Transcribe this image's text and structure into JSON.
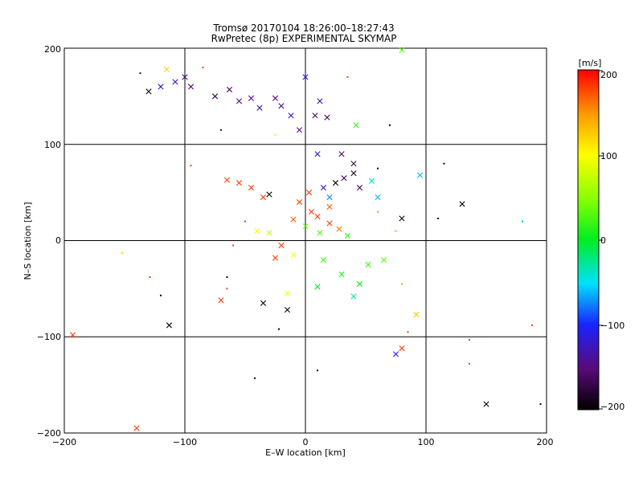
{
  "header": {
    "title": "Tromsø 20170104 18:26:00–18:27:43",
    "subtitle": "RwPretec (8p) EXPERIMENTAL SKYMAP"
  },
  "chart_data": {
    "type": "scatter",
    "title": "Tromsø 20170104 18:26:00–18:27:43",
    "subtitle": "RwPretec (8p) EXPERIMENTAL SKYMAP",
    "xlabel": "E–W location [km]",
    "ylabel": "N–S location [km]",
    "xlim": [
      -200,
      200
    ],
    "ylim": [
      -200,
      200
    ],
    "xticks": [
      "−200",
      "−100",
      "0",
      "100",
      "200"
    ],
    "yticks": [
      "−200",
      "−100",
      "0",
      "100",
      "200"
    ],
    "grid": true,
    "markers": "x = meteor echoes, dot = weaker echoes",
    "colorbar": {
      "label": "[m/s]",
      "range": [
        -200,
        200
      ],
      "ticks": [
        "200",
        "100",
        "0",
        "−100",
        "−200"
      ],
      "colormap": "black-purple-blue-cyan-green-yellow-red"
    },
    "points": [
      {
        "x": -137,
        "y": 174,
        "v": -180,
        "m": "dot"
      },
      {
        "x": -115,
        "y": 178,
        "v": 120,
        "m": "x"
      },
      {
        "x": -120,
        "y": 160,
        "v": -120,
        "m": "x"
      },
      {
        "x": -108,
        "y": 165,
        "v": -130,
        "m": "x"
      },
      {
        "x": -100,
        "y": 170,
        "v": -140,
        "m": "x"
      },
      {
        "x": -95,
        "y": 160,
        "v": -150,
        "m": "x"
      },
      {
        "x": -130,
        "y": 155,
        "v": -190,
        "m": "x"
      },
      {
        "x": -85,
        "y": 180,
        "v": 180,
        "m": "dot"
      },
      {
        "x": -75,
        "y": 150,
        "v": -170,
        "m": "x"
      },
      {
        "x": -63,
        "y": 157,
        "v": -160,
        "m": "x"
      },
      {
        "x": -55,
        "y": 145,
        "v": -150,
        "m": "x"
      },
      {
        "x": -45,
        "y": 148,
        "v": -140,
        "m": "x"
      },
      {
        "x": -38,
        "y": 138,
        "v": -130,
        "m": "x"
      },
      {
        "x": -25,
        "y": 148,
        "v": -150,
        "m": "x"
      },
      {
        "x": -20,
        "y": 140,
        "v": -140,
        "m": "x"
      },
      {
        "x": -12,
        "y": 130,
        "v": -120,
        "m": "x"
      },
      {
        "x": 0,
        "y": 170,
        "v": -110,
        "m": "x"
      },
      {
        "x": 12,
        "y": 145,
        "v": -130,
        "m": "x"
      },
      {
        "x": 8,
        "y": 130,
        "v": -160,
        "m": "x"
      },
      {
        "x": 18,
        "y": 128,
        "v": -170,
        "m": "x"
      },
      {
        "x": -5,
        "y": 115,
        "v": -150,
        "m": "x"
      },
      {
        "x": 35,
        "y": 170,
        "v": 180,
        "m": "dot"
      },
      {
        "x": 42,
        "y": 120,
        "v": 20,
        "m": "x"
      },
      {
        "x": 80,
        "y": 198,
        "v": 30,
        "m": "x"
      },
      {
        "x": 70,
        "y": 120,
        "v": -200,
        "m": "dot"
      },
      {
        "x": -70,
        "y": 115,
        "v": -180,
        "m": "dot"
      },
      {
        "x": -25,
        "y": 110,
        "v": 80,
        "m": "dot"
      },
      {
        "x": 10,
        "y": 90,
        "v": -120,
        "m": "x"
      },
      {
        "x": 30,
        "y": 90,
        "v": -150,
        "m": "x"
      },
      {
        "x": 40,
        "y": 80,
        "v": -170,
        "m": "x"
      },
      {
        "x": 60,
        "y": 75,
        "v": -200,
        "m": "dot"
      },
      {
        "x": 115,
        "y": 80,
        "v": -200,
        "m": "dot"
      },
      {
        "x": 95,
        "y": 68,
        "v": -60,
        "m": "x"
      },
      {
        "x": 130,
        "y": 38,
        "v": -200,
        "m": "x"
      },
      {
        "x": 80,
        "y": 23,
        "v": -190,
        "m": "x"
      },
      {
        "x": 110,
        "y": 23,
        "v": -190,
        "m": "dot"
      },
      {
        "x": 180,
        "y": 20,
        "v": -60,
        "m": "dot"
      },
      {
        "x": 150,
        "y": -170,
        "v": -200,
        "m": "x"
      },
      {
        "x": 195,
        "y": -170,
        "v": -200,
        "m": "dot"
      },
      {
        "x": -140,
        "y": -195,
        "v": 180,
        "m": "x"
      },
      {
        "x": -193,
        "y": -98,
        "v": 180,
        "m": "x"
      },
      {
        "x": -113,
        "y": -88,
        "v": -200,
        "m": "x"
      },
      {
        "x": -70,
        "y": -62,
        "v": 180,
        "m": "x"
      },
      {
        "x": -35,
        "y": -65,
        "v": -200,
        "m": "x"
      },
      {
        "x": -15,
        "y": -72,
        "v": -200,
        "m": "x"
      },
      {
        "x": -22,
        "y": -92,
        "v": -200,
        "m": "dot"
      },
      {
        "x": -42,
        "y": -143,
        "v": -200,
        "m": "dot"
      },
      {
        "x": 10,
        "y": -135,
        "v": -200,
        "m": "dot"
      },
      {
        "x": 92,
        "y": -77,
        "v": 130,
        "m": "x"
      },
      {
        "x": 80,
        "y": -112,
        "v": 180,
        "m": "x"
      },
      {
        "x": 75,
        "y": -118,
        "v": -110,
        "m": "x"
      },
      {
        "x": 85,
        "y": -95,
        "v": 180,
        "m": "dot"
      },
      {
        "x": 136,
        "y": -103,
        "v": 180,
        "m": "dot"
      },
      {
        "x": 136,
        "y": -128,
        "v": 180,
        "m": "dot"
      },
      {
        "x": 188,
        "y": -88,
        "v": 180,
        "m": "dot"
      },
      {
        "x": 80,
        "y": -45,
        "v": 30,
        "m": "dot"
      },
      {
        "x": -129,
        "y": -38,
        "v": 180,
        "m": "dot"
      },
      {
        "x": -152,
        "y": -13,
        "v": 120,
        "m": "dot"
      },
      {
        "x": -120,
        "y": -57,
        "v": -200,
        "m": "dot"
      },
      {
        "x": -65,
        "y": -38,
        "v": -200,
        "m": "dot"
      },
      {
        "x": -95,
        "y": 78,
        "v": 180,
        "m": "dot"
      },
      {
        "x": -65,
        "y": 63,
        "v": 180,
        "m": "x"
      },
      {
        "x": -55,
        "y": 60,
        "v": 180,
        "m": "x"
      },
      {
        "x": -45,
        "y": 55,
        "v": 180,
        "m": "x"
      },
      {
        "x": -35,
        "y": 45,
        "v": 180,
        "m": "x"
      },
      {
        "x": -30,
        "y": 48,
        "v": -200,
        "m": "x"
      },
      {
        "x": 25,
        "y": 60,
        "v": -200,
        "m": "x"
      },
      {
        "x": 32,
        "y": 65,
        "v": -170,
        "m": "x"
      },
      {
        "x": 40,
        "y": 70,
        "v": -190,
        "m": "x"
      },
      {
        "x": 45,
        "y": 55,
        "v": -160,
        "m": "x"
      },
      {
        "x": 55,
        "y": 62,
        "v": -40,
        "m": "x"
      },
      {
        "x": 60,
        "y": 45,
        "v": -60,
        "m": "x"
      },
      {
        "x": 20,
        "y": 45,
        "v": -70,
        "m": "x"
      },
      {
        "x": 15,
        "y": 55,
        "v": -120,
        "m": "x"
      },
      {
        "x": -5,
        "y": 40,
        "v": 180,
        "m": "x"
      },
      {
        "x": 5,
        "y": 30,
        "v": 180,
        "m": "x"
      },
      {
        "x": 10,
        "y": 25,
        "v": 180,
        "m": "x"
      },
      {
        "x": -10,
        "y": 22,
        "v": 170,
        "m": "x"
      },
      {
        "x": 20,
        "y": 18,
        "v": 180,
        "m": "x"
      },
      {
        "x": 28,
        "y": 12,
        "v": 160,
        "m": "x"
      },
      {
        "x": 0,
        "y": 15,
        "v": 40,
        "m": "x"
      },
      {
        "x": 12,
        "y": 8,
        "v": 30,
        "m": "x"
      },
      {
        "x": 35,
        "y": 5,
        "v": 20,
        "m": "x"
      },
      {
        "x": -30,
        "y": 8,
        "v": 80,
        "m": "x"
      },
      {
        "x": -40,
        "y": 10,
        "v": 100,
        "m": "x"
      },
      {
        "x": -20,
        "y": -5,
        "v": 180,
        "m": "x"
      },
      {
        "x": -25,
        "y": -18,
        "v": 180,
        "m": "x"
      },
      {
        "x": -10,
        "y": -15,
        "v": 100,
        "m": "x"
      },
      {
        "x": 15,
        "y": -20,
        "v": 20,
        "m": "x"
      },
      {
        "x": 30,
        "y": -35,
        "v": 10,
        "m": "x"
      },
      {
        "x": 45,
        "y": -45,
        "v": 0,
        "m": "x"
      },
      {
        "x": 10,
        "y": -48,
        "v": 0,
        "m": "x"
      },
      {
        "x": -15,
        "y": -55,
        "v": 100,
        "m": "x"
      },
      {
        "x": 40,
        "y": -58,
        "v": -30,
        "m": "x"
      },
      {
        "x": 52,
        "y": -25,
        "v": 20,
        "m": "x"
      },
      {
        "x": 65,
        "y": -20,
        "v": 30,
        "m": "x"
      },
      {
        "x": -60,
        "y": -5,
        "v": 180,
        "m": "dot"
      },
      {
        "x": -50,
        "y": 20,
        "v": 180,
        "m": "dot"
      },
      {
        "x": 20,
        "y": 35,
        "v": 170,
        "m": "x"
      },
      {
        "x": 3,
        "y": 50,
        "v": 180,
        "m": "x"
      },
      {
        "x": 60,
        "y": 30,
        "v": 20,
        "m": "dot"
      },
      {
        "x": 75,
        "y": 10,
        "v": 30,
        "m": "dot"
      },
      {
        "x": -65,
        "y": -50,
        "v": 180,
        "m": "dot"
      }
    ]
  }
}
